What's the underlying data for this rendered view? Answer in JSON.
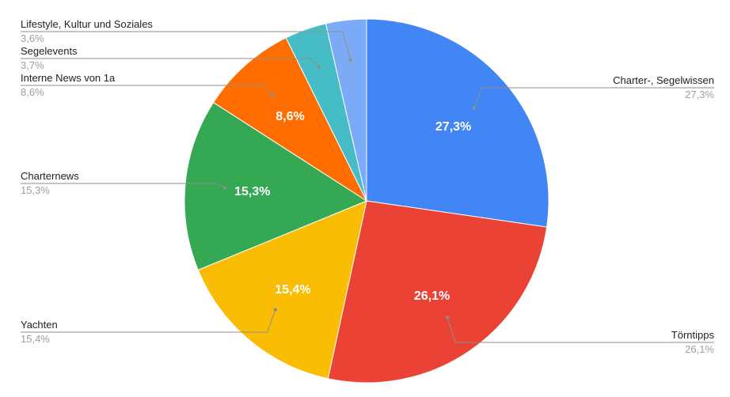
{
  "chart_data": {
    "type": "pie",
    "slices": [
      {
        "label": "Charter-, Segelwissen",
        "value": 27.3,
        "display": "27,3%",
        "color": "#4285f4"
      },
      {
        "label": "Törntipps",
        "value": 26.1,
        "display": "26,1%",
        "color": "#ea4335"
      },
      {
        "label": "Yachten",
        "value": 15.4,
        "display": "15,4%",
        "color": "#fbbc04"
      },
      {
        "label": "Charternews",
        "value": 15.3,
        "display": "15,3%",
        "color": "#34a853"
      },
      {
        "label": "Interne News von 1a",
        "value": 8.6,
        "display": "8,6%",
        "color": "#ff6d01"
      },
      {
        "label": "Segelevents",
        "value": 3.7,
        "display": "3,7%",
        "color": "#46bdc6"
      },
      {
        "label": "Lifestyle, Kultur und Soziales",
        "value": 3.6,
        "display": "3,6%",
        "color": "#7baaf7"
      }
    ],
    "legend": "leader-line labels",
    "start_angle": "12 o'clock",
    "direction": "clockwise"
  }
}
